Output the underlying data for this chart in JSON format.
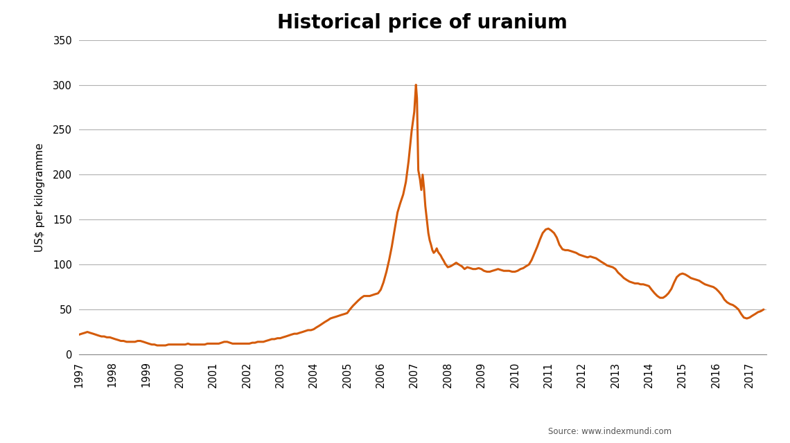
{
  "title": "Historical price of uranium",
  "ylabel": "US$ per kilogramme",
  "source_text": "Source: www.indexmundi.com",
  "line_color": "#D45B0A",
  "background_color": "#FFFFFF",
  "ylim": [
    0,
    350
  ],
  "yticks": [
    0,
    50,
    100,
    150,
    200,
    250,
    300,
    350
  ],
  "years": [
    1997,
    1998,
    1999,
    2000,
    2001,
    2002,
    2003,
    2004,
    2005,
    2006,
    2007,
    2008,
    2009,
    2010,
    2011,
    2012,
    2013,
    2014,
    2015,
    2016,
    2017
  ],
  "data": [
    [
      1997.0,
      22
    ],
    [
      1997.08,
      23
    ],
    [
      1997.17,
      24
    ],
    [
      1997.25,
      25
    ],
    [
      1997.33,
      24
    ],
    [
      1997.42,
      23
    ],
    [
      1997.5,
      22
    ],
    [
      1997.58,
      21
    ],
    [
      1997.67,
      20
    ],
    [
      1997.75,
      20
    ],
    [
      1997.83,
      19
    ],
    [
      1997.92,
      19
    ],
    [
      1998.0,
      18
    ],
    [
      1998.08,
      17
    ],
    [
      1998.17,
      16
    ],
    [
      1998.25,
      15
    ],
    [
      1998.33,
      15
    ],
    [
      1998.42,
      14
    ],
    [
      1998.5,
      14
    ],
    [
      1998.58,
      14
    ],
    [
      1998.67,
      14
    ],
    [
      1998.75,
      15
    ],
    [
      1998.83,
      15
    ],
    [
      1998.92,
      14
    ],
    [
      1999.0,
      13
    ],
    [
      1999.08,
      12
    ],
    [
      1999.17,
      11
    ],
    [
      1999.25,
      11
    ],
    [
      1999.33,
      10
    ],
    [
      1999.42,
      10
    ],
    [
      1999.5,
      10
    ],
    [
      1999.58,
      10
    ],
    [
      1999.67,
      11
    ],
    [
      1999.75,
      11
    ],
    [
      1999.83,
      11
    ],
    [
      1999.92,
      11
    ],
    [
      2000.0,
      11
    ],
    [
      2000.08,
      11
    ],
    [
      2000.17,
      11
    ],
    [
      2000.25,
      12
    ],
    [
      2000.33,
      11
    ],
    [
      2000.42,
      11
    ],
    [
      2000.5,
      11
    ],
    [
      2000.58,
      11
    ],
    [
      2000.67,
      11
    ],
    [
      2000.75,
      11
    ],
    [
      2000.83,
      12
    ],
    [
      2000.92,
      12
    ],
    [
      2001.0,
      12
    ],
    [
      2001.08,
      12
    ],
    [
      2001.17,
      12
    ],
    [
      2001.25,
      13
    ],
    [
      2001.33,
      14
    ],
    [
      2001.42,
      14
    ],
    [
      2001.5,
      13
    ],
    [
      2001.58,
      12
    ],
    [
      2001.67,
      12
    ],
    [
      2001.75,
      12
    ],
    [
      2001.83,
      12
    ],
    [
      2001.92,
      12
    ],
    [
      2002.0,
      12
    ],
    [
      2002.08,
      12
    ],
    [
      2002.17,
      13
    ],
    [
      2002.25,
      13
    ],
    [
      2002.33,
      14
    ],
    [
      2002.42,
      14
    ],
    [
      2002.5,
      14
    ],
    [
      2002.58,
      15
    ],
    [
      2002.67,
      16
    ],
    [
      2002.75,
      17
    ],
    [
      2002.83,
      17
    ],
    [
      2002.92,
      18
    ],
    [
      2003.0,
      18
    ],
    [
      2003.08,
      19
    ],
    [
      2003.17,
      20
    ],
    [
      2003.25,
      21
    ],
    [
      2003.33,
      22
    ],
    [
      2003.42,
      23
    ],
    [
      2003.5,
      23
    ],
    [
      2003.58,
      24
    ],
    [
      2003.67,
      25
    ],
    [
      2003.75,
      26
    ],
    [
      2003.83,
      27
    ],
    [
      2003.92,
      27
    ],
    [
      2004.0,
      28
    ],
    [
      2004.08,
      30
    ],
    [
      2004.17,
      32
    ],
    [
      2004.25,
      34
    ],
    [
      2004.33,
      36
    ],
    [
      2004.42,
      38
    ],
    [
      2004.5,
      40
    ],
    [
      2004.58,
      41
    ],
    [
      2004.67,
      42
    ],
    [
      2004.75,
      43
    ],
    [
      2004.83,
      44
    ],
    [
      2004.92,
      45
    ],
    [
      2005.0,
      46
    ],
    [
      2005.08,
      50
    ],
    [
      2005.17,
      54
    ],
    [
      2005.25,
      57
    ],
    [
      2005.33,
      60
    ],
    [
      2005.42,
      63
    ],
    [
      2005.5,
      65
    ],
    [
      2005.58,
      65
    ],
    [
      2005.67,
      65
    ],
    [
      2005.75,
      66
    ],
    [
      2005.83,
      67
    ],
    [
      2005.92,
      68
    ],
    [
      2006.0,
      72
    ],
    [
      2006.08,
      80
    ],
    [
      2006.17,
      92
    ],
    [
      2006.25,
      105
    ],
    [
      2006.33,
      120
    ],
    [
      2006.42,
      140
    ],
    [
      2006.5,
      158
    ],
    [
      2006.58,
      168
    ],
    [
      2006.67,
      178
    ],
    [
      2006.75,
      192
    ],
    [
      2006.83,
      215
    ],
    [
      2006.92,
      248
    ],
    [
      2007.0,
      270
    ],
    [
      2007.05,
      300
    ],
    [
      2007.08,
      285
    ],
    [
      2007.12,
      205
    ],
    [
      2007.17,
      195
    ],
    [
      2007.21,
      183
    ],
    [
      2007.25,
      200
    ],
    [
      2007.29,
      185
    ],
    [
      2007.33,
      165
    ],
    [
      2007.38,
      148
    ],
    [
      2007.42,
      135
    ],
    [
      2007.46,
      127
    ],
    [
      2007.5,
      122
    ],
    [
      2007.54,
      116
    ],
    [
      2007.58,
      113
    ],
    [
      2007.63,
      115
    ],
    [
      2007.67,
      118
    ],
    [
      2007.71,
      114
    ],
    [
      2007.75,
      112
    ],
    [
      2007.79,
      110
    ],
    [
      2007.83,
      107
    ],
    [
      2007.88,
      104
    ],
    [
      2007.92,
      101
    ],
    [
      2007.96,
      99
    ],
    [
      2008.0,
      97
    ],
    [
      2008.08,
      98
    ],
    [
      2008.17,
      100
    ],
    [
      2008.25,
      102
    ],
    [
      2008.33,
      100
    ],
    [
      2008.42,
      98
    ],
    [
      2008.5,
      95
    ],
    [
      2008.58,
      97
    ],
    [
      2008.67,
      96
    ],
    [
      2008.75,
      95
    ],
    [
      2008.83,
      95
    ],
    [
      2008.92,
      96
    ],
    [
      2009.0,
      95
    ],
    [
      2009.08,
      93
    ],
    [
      2009.17,
      92
    ],
    [
      2009.25,
      92
    ],
    [
      2009.33,
      93
    ],
    [
      2009.42,
      94
    ],
    [
      2009.5,
      95
    ],
    [
      2009.58,
      94
    ],
    [
      2009.67,
      93
    ],
    [
      2009.75,
      93
    ],
    [
      2009.83,
      93
    ],
    [
      2009.92,
      92
    ],
    [
      2010.0,
      92
    ],
    [
      2010.08,
      93
    ],
    [
      2010.17,
      95
    ],
    [
      2010.25,
      96
    ],
    [
      2010.33,
      98
    ],
    [
      2010.42,
      100
    ],
    [
      2010.5,
      105
    ],
    [
      2010.58,
      112
    ],
    [
      2010.67,
      120
    ],
    [
      2010.75,
      128
    ],
    [
      2010.83,
      135
    ],
    [
      2010.92,
      139
    ],
    [
      2011.0,
      140
    ],
    [
      2011.08,
      138
    ],
    [
      2011.17,
      135
    ],
    [
      2011.25,
      130
    ],
    [
      2011.33,
      122
    ],
    [
      2011.42,
      117
    ],
    [
      2011.5,
      116
    ],
    [
      2011.58,
      116
    ],
    [
      2011.67,
      115
    ],
    [
      2011.75,
      114
    ],
    [
      2011.83,
      113
    ],
    [
      2011.92,
      111
    ],
    [
      2012.0,
      110
    ],
    [
      2012.08,
      109
    ],
    [
      2012.17,
      108
    ],
    [
      2012.25,
      109
    ],
    [
      2012.33,
      108
    ],
    [
      2012.42,
      107
    ],
    [
      2012.5,
      105
    ],
    [
      2012.58,
      103
    ],
    [
      2012.67,
      101
    ],
    [
      2012.75,
      99
    ],
    [
      2012.83,
      98
    ],
    [
      2012.92,
      97
    ],
    [
      2013.0,
      95
    ],
    [
      2013.08,
      91
    ],
    [
      2013.17,
      88
    ],
    [
      2013.25,
      85
    ],
    [
      2013.33,
      83
    ],
    [
      2013.42,
      81
    ],
    [
      2013.5,
      80
    ],
    [
      2013.58,
      79
    ],
    [
      2013.67,
      79
    ],
    [
      2013.75,
      78
    ],
    [
      2013.83,
      78
    ],
    [
      2013.92,
      77
    ],
    [
      2014.0,
      76
    ],
    [
      2014.08,
      72
    ],
    [
      2014.17,
      68
    ],
    [
      2014.25,
      65
    ],
    [
      2014.33,
      63
    ],
    [
      2014.42,
      63
    ],
    [
      2014.5,
      65
    ],
    [
      2014.58,
      68
    ],
    [
      2014.67,
      73
    ],
    [
      2014.75,
      80
    ],
    [
      2014.83,
      86
    ],
    [
      2014.92,
      89
    ],
    [
      2015.0,
      90
    ],
    [
      2015.08,
      89
    ],
    [
      2015.17,
      87
    ],
    [
      2015.25,
      85
    ],
    [
      2015.33,
      84
    ],
    [
      2015.42,
      83
    ],
    [
      2015.5,
      82
    ],
    [
      2015.58,
      80
    ],
    [
      2015.67,
      78
    ],
    [
      2015.75,
      77
    ],
    [
      2015.83,
      76
    ],
    [
      2015.92,
      75
    ],
    [
      2016.0,
      73
    ],
    [
      2016.08,
      70
    ],
    [
      2016.17,
      66
    ],
    [
      2016.25,
      61
    ],
    [
      2016.33,
      58
    ],
    [
      2016.42,
      56
    ],
    [
      2016.5,
      55
    ],
    [
      2016.58,
      53
    ],
    [
      2016.67,
      50
    ],
    [
      2016.75,
      45
    ],
    [
      2016.83,
      41
    ],
    [
      2016.92,
      40
    ],
    [
      2017.0,
      41
    ],
    [
      2017.08,
      43
    ],
    [
      2017.17,
      45
    ],
    [
      2017.25,
      47
    ],
    [
      2017.33,
      48
    ],
    [
      2017.42,
      50
    ]
  ]
}
